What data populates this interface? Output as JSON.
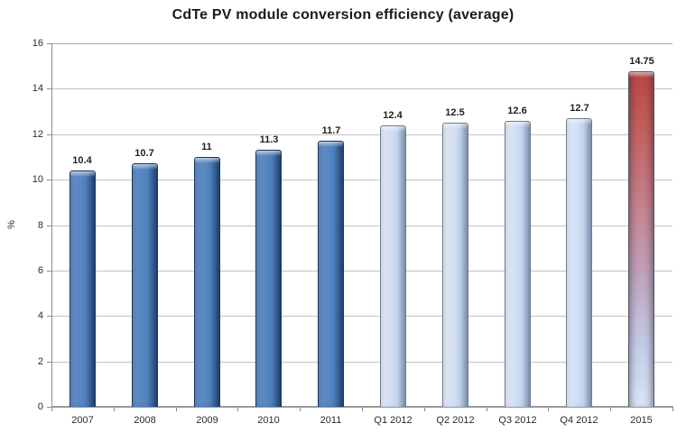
{
  "chart_data": {
    "type": "bar",
    "title": "CdTe PV module conversion efficiency (average)",
    "ylabel": "%",
    "xlabel": "",
    "categories": [
      "2007",
      "2008",
      "2009",
      "2010",
      "2011",
      "Q1 2012",
      "Q2 2012",
      "Q3 2012",
      "Q4 2012",
      "2015"
    ],
    "values": [
      10.4,
      10.7,
      11,
      11.3,
      11.7,
      12.4,
      12.5,
      12.6,
      12.7,
      14.75
    ],
    "data_labels": [
      "10.4",
      "10.7",
      "11",
      "11.3",
      "11.7",
      "12.4",
      "12.5",
      "12.6",
      "12.7",
      "14.75"
    ],
    "bar_styles": [
      "solid",
      "solid",
      "solid",
      "solid",
      "solid",
      "pale",
      "pale",
      "pale",
      "pale",
      "red"
    ],
    "ylim": [
      0,
      16
    ],
    "ytick_step": 2,
    "ytick_labels": [
      "0",
      "2",
      "4",
      "6",
      "8",
      "10",
      "12",
      "14",
      "16"
    ],
    "grid": true,
    "legend": "none",
    "colors": {
      "solid_bar": "#4f81bd",
      "solid_bar_border": "#17375e",
      "pale_bar": "#c6d6f0",
      "pale_bar_border": "#6e7b8e",
      "red_bar_top": "#b94743",
      "red_bar_bottom": "#dbe5f6",
      "gridline": "#c3c3c3",
      "axis": "#8c8c8c",
      "text": "#2b2b2b",
      "background": "#ffffff"
    }
  }
}
